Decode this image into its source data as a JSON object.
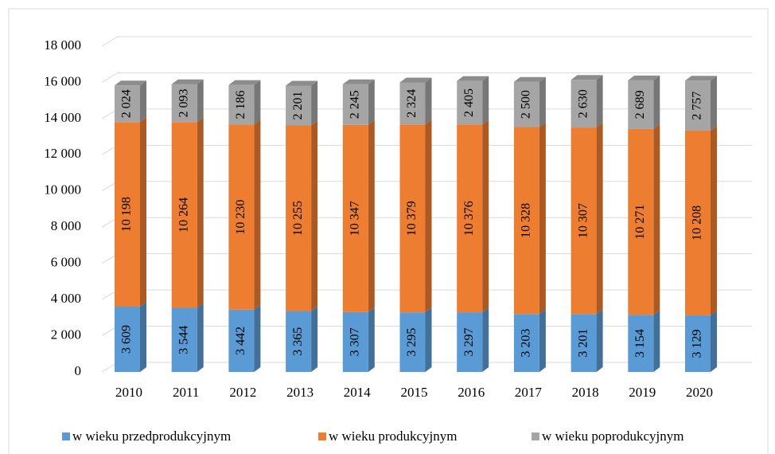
{
  "chart_data": {
    "type": "bar",
    "stacked": true,
    "categories": [
      "2010",
      "2011",
      "2012",
      "2013",
      "2014",
      "2015",
      "2016",
      "2017",
      "2018",
      "2019",
      "2020"
    ],
    "series": [
      {
        "name": "w wieku przedprodukcyjnym",
        "color": "#5b9bd5",
        "values": [
          3609,
          3544,
          3442,
          3365,
          3307,
          3295,
          3297,
          3203,
          3201,
          3154,
          3129
        ],
        "value_labels": [
          "3 609",
          "3 544",
          "3 442",
          "3 365",
          "3 307",
          "3 295",
          "3 297",
          "3 203",
          "3 201",
          "3 154",
          "3 129"
        ]
      },
      {
        "name": "w wieku produkcyjnym",
        "color": "#ed7d31",
        "values": [
          10198,
          10264,
          10230,
          10255,
          10347,
          10379,
          10376,
          10328,
          10307,
          10271,
          10208
        ],
        "value_labels": [
          "10 198",
          "10 264",
          "10 230",
          "10 255",
          "10 347",
          "10 379",
          "10 376",
          "10 328",
          "10 307",
          "10 271",
          "10 208"
        ]
      },
      {
        "name": "w wieku poprodukcyjnym",
        "color": "#a5a5a5",
        "values": [
          2024,
          2093,
          2186,
          2201,
          2245,
          2324,
          2405,
          2500,
          2630,
          2689,
          2757
        ],
        "value_labels": [
          "2 024",
          "2 093",
          "2 186",
          "2 201",
          "2 245",
          "2 324",
          "2 405",
          "2 500",
          "2 630",
          "2 689",
          "2 757"
        ]
      }
    ],
    "ylim": [
      0,
      18000
    ],
    "yticks": [
      0,
      {
        "value": 2000,
        "label": "2 000"
      },
      {
        "value": 4000,
        "label": "4 000"
      },
      {
        "value": 6000,
        "label": "6 000"
      },
      {
        "value": 8000,
        "label": "8 000"
      },
      {
        "value": 10000,
        "label": "10 000"
      },
      {
        "value": 12000,
        "label": "12 000"
      },
      {
        "value": 14000,
        "label": "14 000"
      },
      {
        "value": 16000,
        "label": "16 000"
      },
      {
        "value": 18000,
        "label": "18 000"
      }
    ],
    "grid": true,
    "legend": "bottom"
  }
}
